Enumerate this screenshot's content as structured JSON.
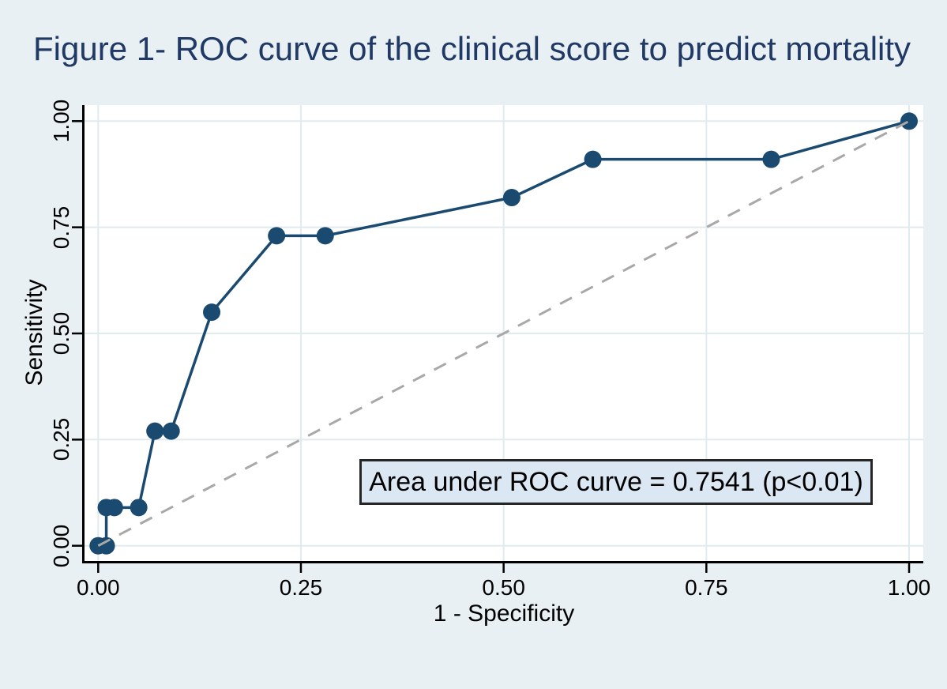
{
  "figure": {
    "title": "Figure 1- ROC curve of the clinical score to predict mortality",
    "colors": {
      "page_background": "#e9f0f3",
      "plot_background": "#ffffff",
      "title_color": "#213a65",
      "grid": "#e0ebee",
      "axis": "#000000",
      "roc_line": "#1b4a70",
      "reference_line": "#a8a8a8",
      "annotation_background": "#dbe8f3",
      "annotation_border": "#262626"
    }
  },
  "chart_data": {
    "type": "line",
    "title": "Figure 1- ROC curve of the clinical score to predict mortality",
    "xlabel": "1 - Specificity",
    "ylabel": "Sensitivity",
    "xlim": [
      0,
      1
    ],
    "ylim": [
      0,
      1
    ],
    "grid": true,
    "legend": "none",
    "xticks": [
      {
        "v": 0.0,
        "label": "0.00"
      },
      {
        "v": 0.25,
        "label": "0.25"
      },
      {
        "v": 0.5,
        "label": "0.50"
      },
      {
        "v": 0.75,
        "label": "0.75"
      },
      {
        "v": 1.0,
        "label": "1.00"
      }
    ],
    "yticks": [
      {
        "v": 0.0,
        "label": "0.00"
      },
      {
        "v": 0.25,
        "label": "0.25"
      },
      {
        "v": 0.5,
        "label": "0.50"
      },
      {
        "v": 0.75,
        "label": "0.75"
      },
      {
        "v": 1.0,
        "label": "1.00"
      }
    ],
    "series": [
      {
        "name": "ROC curve",
        "style": "line-with-markers",
        "color": "#1b4a70",
        "points": [
          [
            0.0,
            0.0
          ],
          [
            0.01,
            0.0
          ],
          [
            0.01,
            0.09
          ],
          [
            0.02,
            0.09
          ],
          [
            0.05,
            0.09
          ],
          [
            0.07,
            0.27
          ],
          [
            0.09,
            0.27
          ],
          [
            0.14,
            0.55
          ],
          [
            0.22,
            0.73
          ],
          [
            0.28,
            0.73
          ],
          [
            0.51,
            0.82
          ],
          [
            0.61,
            0.91
          ],
          [
            0.83,
            0.91
          ],
          [
            1.0,
            1.0
          ]
        ]
      },
      {
        "name": "Reference diagonal",
        "style": "dashed-line",
        "color": "#a8a8a8",
        "points": [
          [
            0,
            0
          ],
          [
            1,
            1
          ]
        ]
      }
    ],
    "annotation": {
      "text": "Area under ROC curve = 0.7541 (p<0.01)",
      "auc_value": "0.7541",
      "p_value": "p<0.01"
    }
  }
}
